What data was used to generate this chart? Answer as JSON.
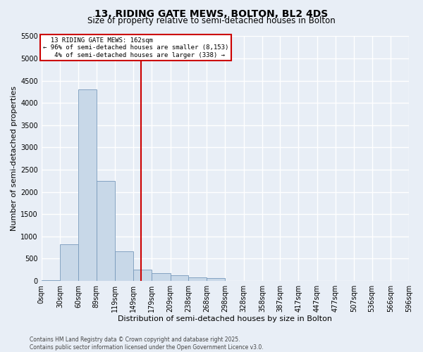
{
  "title1": "13, RIDING GATE MEWS, BOLTON, BL2 4DS",
  "title2": "Size of property relative to semi-detached houses in Bolton",
  "xlabel": "Distribution of semi-detached houses by size in Bolton",
  "ylabel": "Number of semi-detached properties",
  "footnote": "Contains HM Land Registry data © Crown copyright and database right 2025.\nContains public sector information licensed under the Open Government Licence v3.0.",
  "bin_edges": [
    0,
    30,
    60,
    89,
    119,
    149,
    179,
    209,
    238,
    268,
    298,
    328,
    358,
    387,
    417,
    447,
    477,
    507,
    536,
    566,
    596
  ],
  "bin_labels": [
    "0sqm",
    "30sqm",
    "60sqm",
    "89sqm",
    "119sqm",
    "149sqm",
    "179sqm",
    "209sqm",
    "238sqm",
    "268sqm",
    "298sqm",
    "328sqm",
    "358sqm",
    "387sqm",
    "417sqm",
    "447sqm",
    "477sqm",
    "507sqm",
    "536sqm",
    "566sqm",
    "596sqm"
  ],
  "bar_heights": [
    20,
    830,
    4300,
    2250,
    670,
    250,
    170,
    130,
    80,
    60,
    0,
    0,
    0,
    0,
    0,
    0,
    0,
    0,
    0,
    0
  ],
  "bar_color": "#c8d8e8",
  "bar_edgecolor": "#7799bb",
  "property_size": 162,
  "property_label": "13 RIDING GATE MEWS: 162sqm",
  "pct_smaller": 96,
  "n_smaller": 8153,
  "pct_larger": 4,
  "n_larger": 338,
  "vline_color": "#cc0000",
  "annotation_box_color": "#cc0000",
  "ylim": [
    0,
    5500
  ],
  "yticks": [
    0,
    500,
    1000,
    1500,
    2000,
    2500,
    3000,
    3500,
    4000,
    4500,
    5000,
    5500
  ],
  "background_color": "#e8eef6",
  "grid_color": "#ffffff",
  "title_fontsize": 10,
  "subtitle_fontsize": 8.5,
  "axis_label_fontsize": 8,
  "tick_fontsize": 7,
  "footnote_fontsize": 5.5
}
